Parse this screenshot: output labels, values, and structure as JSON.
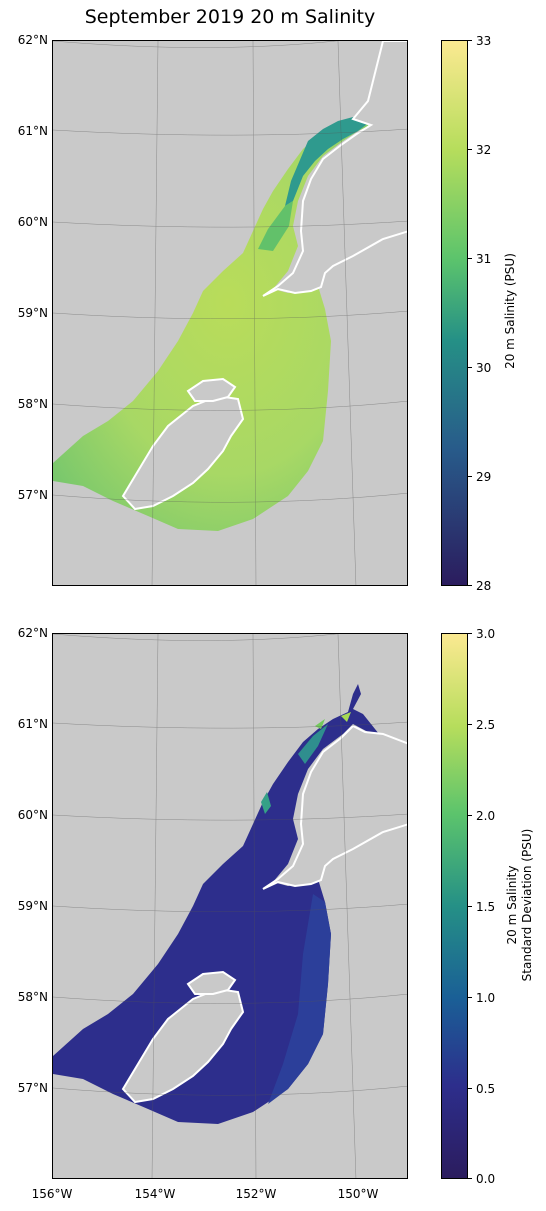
{
  "title": "September 2019 20 m Salinity",
  "lat_labels": [
    "62°N",
    "61°N",
    "60°N",
    "59°N",
    "58°N",
    "57°N"
  ],
  "lon_labels": [
    "156°W",
    "154°W",
    "152°W",
    "150°W"
  ],
  "colors": {
    "land": "#c9c9c9",
    "water_gap": "#ffffff",
    "viridis": [
      "#440154",
      "#3b528b",
      "#21908d",
      "#5dc963",
      "#fde725"
    ],
    "cmap_low": "#2b1c5e",
    "cmap_mid": "#2e8b8a",
    "cmap_high": "#fbe991"
  },
  "maps": [
    {
      "cbar_label": "20 m Salinity (PSU)",
      "cbar_ticks": [
        "33",
        "32",
        "31",
        "30",
        "29",
        "28"
      ],
      "cbar_range": [
        28,
        33
      ],
      "dominant_value": 31.8
    },
    {
      "cbar_label_line1": "20 m Salinity",
      "cbar_label_line2": "Standard Deviation (PSU)",
      "cbar_ticks": [
        "3.0",
        "2.5",
        "2.0",
        "1.5",
        "1.0",
        "0.5",
        "0.0"
      ],
      "cbar_range": [
        0,
        3
      ],
      "dominant_value": 0.2
    }
  ]
}
